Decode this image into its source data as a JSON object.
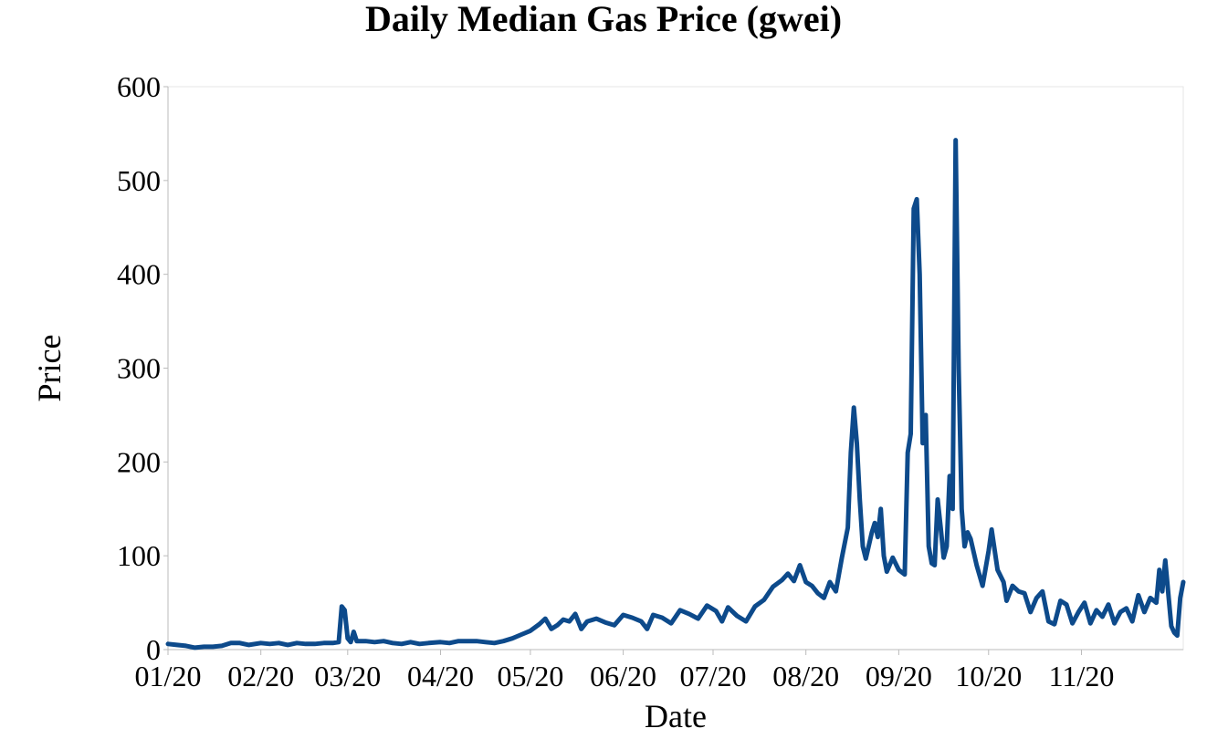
{
  "chart_data": {
    "type": "line",
    "title": "Daily Median Gas Price (gwei)",
    "xlabel": "Date",
    "ylabel": "Price",
    "ylim": [
      0,
      600
    ],
    "yticks": [
      "0",
      "100",
      "200",
      "300",
      "400",
      "500",
      "600"
    ],
    "xlim": [
      "2020-01-01",
      "2020-11-26"
    ],
    "xticks": [
      {
        "date": "2020-01-01",
        "label": "01/20"
      },
      {
        "date": "2020-02-01",
        "label": "02/20"
      },
      {
        "date": "2020-03-01",
        "label": "03/20"
      },
      {
        "date": "2020-04-01",
        "label": "04/20"
      },
      {
        "date": "2020-05-01",
        "label": "05/20"
      },
      {
        "date": "2020-06-01",
        "label": "06/20"
      },
      {
        "date": "2020-07-01",
        "label": "07/20"
      },
      {
        "date": "2020-08-01",
        "label": "08/20"
      },
      {
        "date": "2020-09-01",
        "label": "09/20"
      },
      {
        "date": "2020-10-01",
        "label": "10/20"
      },
      {
        "date": "2020-11-01",
        "label": "11/20"
      }
    ],
    "grid": false,
    "line_color": "#0d4a8b",
    "series": [
      {
        "points": [
          [
            "2020-01-01",
            6
          ],
          [
            "2020-01-04",
            5
          ],
          [
            "2020-01-07",
            4
          ],
          [
            "2020-01-10",
            2
          ],
          [
            "2020-01-13",
            3
          ],
          [
            "2020-01-16",
            3
          ],
          [
            "2020-01-19",
            4
          ],
          [
            "2020-01-22",
            7
          ],
          [
            "2020-01-25",
            7
          ],
          [
            "2020-01-28",
            5
          ],
          [
            "2020-02-01",
            7
          ],
          [
            "2020-02-04",
            6
          ],
          [
            "2020-02-07",
            7
          ],
          [
            "2020-02-10",
            5
          ],
          [
            "2020-02-13",
            7
          ],
          [
            "2020-02-16",
            6
          ],
          [
            "2020-02-19",
            6
          ],
          [
            "2020-02-22",
            7
          ],
          [
            "2020-02-25",
            7
          ],
          [
            "2020-02-27",
            8
          ],
          [
            "2020-02-28",
            46
          ],
          [
            "2020-02-29",
            42
          ],
          [
            "2020-03-01",
            12
          ],
          [
            "2020-03-02",
            8
          ],
          [
            "2020-03-03",
            19
          ],
          [
            "2020-03-04",
            9
          ],
          [
            "2020-03-07",
            9
          ],
          [
            "2020-03-10",
            8
          ],
          [
            "2020-03-13",
            9
          ],
          [
            "2020-03-16",
            7
          ],
          [
            "2020-03-19",
            6
          ],
          [
            "2020-03-22",
            8
          ],
          [
            "2020-03-25",
            6
          ],
          [
            "2020-03-28",
            7
          ],
          [
            "2020-04-01",
            8
          ],
          [
            "2020-04-04",
            7
          ],
          [
            "2020-04-07",
            9
          ],
          [
            "2020-04-10",
            9
          ],
          [
            "2020-04-13",
            9
          ],
          [
            "2020-04-16",
            8
          ],
          [
            "2020-04-19",
            7
          ],
          [
            "2020-04-22",
            9
          ],
          [
            "2020-04-25",
            12
          ],
          [
            "2020-04-28",
            16
          ],
          [
            "2020-05-01",
            20
          ],
          [
            "2020-05-04",
            27
          ],
          [
            "2020-05-06",
            33
          ],
          [
            "2020-05-08",
            22
          ],
          [
            "2020-05-10",
            26
          ],
          [
            "2020-05-12",
            32
          ],
          [
            "2020-05-14",
            30
          ],
          [
            "2020-05-16",
            38
          ],
          [
            "2020-05-18",
            22
          ],
          [
            "2020-05-20",
            30
          ],
          [
            "2020-05-23",
            33
          ],
          [
            "2020-05-26",
            29
          ],
          [
            "2020-05-29",
            26
          ],
          [
            "2020-06-01",
            37
          ],
          [
            "2020-06-04",
            34
          ],
          [
            "2020-06-07",
            30
          ],
          [
            "2020-06-09",
            22
          ],
          [
            "2020-06-11",
            37
          ],
          [
            "2020-06-14",
            34
          ],
          [
            "2020-06-17",
            28
          ],
          [
            "2020-06-20",
            42
          ],
          [
            "2020-06-23",
            38
          ],
          [
            "2020-06-26",
            33
          ],
          [
            "2020-06-29",
            47
          ],
          [
            "2020-07-02",
            41
          ],
          [
            "2020-07-04",
            30
          ],
          [
            "2020-07-06",
            45
          ],
          [
            "2020-07-09",
            36
          ],
          [
            "2020-07-12",
            30
          ],
          [
            "2020-07-15",
            46
          ],
          [
            "2020-07-18",
            53
          ],
          [
            "2020-07-21",
            67
          ],
          [
            "2020-07-24",
            74
          ],
          [
            "2020-07-26",
            81
          ],
          [
            "2020-07-28",
            73
          ],
          [
            "2020-07-30",
            90
          ],
          [
            "2020-08-01",
            72
          ],
          [
            "2020-08-03",
            68
          ],
          [
            "2020-08-05",
            60
          ],
          [
            "2020-08-07",
            55
          ],
          [
            "2020-08-09",
            72
          ],
          [
            "2020-08-11",
            62
          ],
          [
            "2020-08-13",
            98
          ],
          [
            "2020-08-15",
            130
          ],
          [
            "2020-08-16",
            210
          ],
          [
            "2020-08-17",
            258
          ],
          [
            "2020-08-18",
            220
          ],
          [
            "2020-08-19",
            160
          ],
          [
            "2020-08-20",
            110
          ],
          [
            "2020-08-21",
            97
          ],
          [
            "2020-08-23",
            125
          ],
          [
            "2020-08-24",
            135
          ],
          [
            "2020-08-25",
            120
          ],
          [
            "2020-08-26",
            150
          ],
          [
            "2020-08-27",
            100
          ],
          [
            "2020-08-28",
            83
          ],
          [
            "2020-08-30",
            98
          ],
          [
            "2020-09-01",
            85
          ],
          [
            "2020-09-03",
            80
          ],
          [
            "2020-09-04",
            210
          ],
          [
            "2020-09-05",
            230
          ],
          [
            "2020-09-06",
            470
          ],
          [
            "2020-09-07",
            480
          ],
          [
            "2020-09-08",
            400
          ],
          [
            "2020-09-09",
            220
          ],
          [
            "2020-09-10",
            250
          ],
          [
            "2020-09-11",
            110
          ],
          [
            "2020-09-12",
            92
          ],
          [
            "2020-09-13",
            90
          ],
          [
            "2020-09-14",
            160
          ],
          [
            "2020-09-15",
            130
          ],
          [
            "2020-09-16",
            98
          ],
          [
            "2020-09-17",
            110
          ],
          [
            "2020-09-18",
            185
          ],
          [
            "2020-09-19",
            150
          ],
          [
            "2020-09-20",
            543
          ],
          [
            "2020-09-21",
            300
          ],
          [
            "2020-09-22",
            150
          ],
          [
            "2020-09-23",
            110
          ],
          [
            "2020-09-24",
            125
          ],
          [
            "2020-09-25",
            118
          ],
          [
            "2020-09-27",
            90
          ],
          [
            "2020-09-29",
            68
          ],
          [
            "2020-10-01",
            105
          ],
          [
            "2020-10-02",
            128
          ],
          [
            "2020-10-04",
            85
          ],
          [
            "2020-10-06",
            72
          ],
          [
            "2020-10-07",
            52
          ],
          [
            "2020-10-09",
            68
          ],
          [
            "2020-10-11",
            62
          ],
          [
            "2020-10-13",
            60
          ],
          [
            "2020-10-15",
            40
          ],
          [
            "2020-10-17",
            55
          ],
          [
            "2020-10-19",
            62
          ],
          [
            "2020-10-21",
            30
          ],
          [
            "2020-10-23",
            27
          ],
          [
            "2020-10-25",
            52
          ],
          [
            "2020-10-27",
            48
          ],
          [
            "2020-10-29",
            28
          ],
          [
            "2020-10-31",
            40
          ],
          [
            "2020-11-02",
            50
          ],
          [
            "2020-11-04",
            28
          ],
          [
            "2020-11-06",
            42
          ],
          [
            "2020-11-08",
            35
          ],
          [
            "2020-11-10",
            48
          ],
          [
            "2020-11-12",
            28
          ],
          [
            "2020-11-14",
            40
          ],
          [
            "2020-11-16",
            44
          ],
          [
            "2020-11-18",
            30
          ],
          [
            "2020-11-20",
            58
          ],
          [
            "2020-11-22",
            40
          ],
          [
            "2020-11-24",
            55
          ],
          [
            "2020-11-26",
            50
          ],
          [
            "2020-11-27",
            85
          ],
          [
            "2020-11-28",
            62
          ],
          [
            "2020-11-29",
            95
          ],
          [
            "2020-11-30",
            60
          ],
          [
            "2020-12-01",
            25
          ],
          [
            "2020-12-02",
            18
          ],
          [
            "2020-12-03",
            15
          ],
          [
            "2020-12-04",
            55
          ],
          [
            "2020-12-05",
            72
          ]
        ]
      }
    ]
  }
}
